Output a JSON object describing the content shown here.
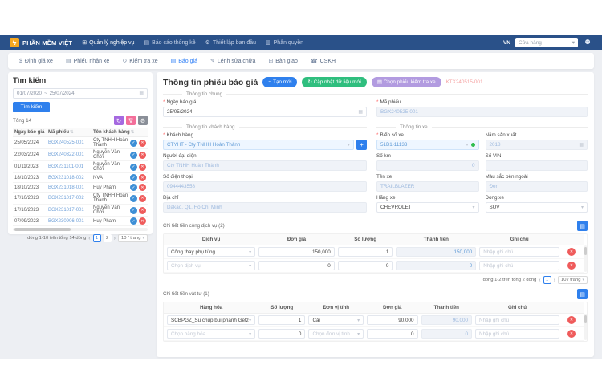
{
  "colors": {
    "navbar": "#2a5189",
    "primary": "#2f80ed",
    "green": "#2fbe7e",
    "purple": "#b29be0",
    "danger": "#ef5b5b",
    "violet": "#a569e0",
    "pink": "#f36f9a",
    "link": "#6fa0d8"
  },
  "icons": {
    "bolt": "ϟ",
    "grid": "⊞",
    "report": "▤",
    "setup": "⚙",
    "permission": "▥",
    "tab_pricing": "$",
    "tab_receive": "▤",
    "tab_inspect": "↻",
    "tab_quote": "▤",
    "tab_repair": "✎",
    "tab_handover": "⊟",
    "tab_cskh": "☎",
    "calendar": "▦",
    "refresh": "↻",
    "filter": "∇",
    "gear": "⚙",
    "sort": "⇅",
    "check": "✓",
    "del": "✕",
    "plus": "+",
    "chev": "▾",
    "prev": "‹",
    "next": "›",
    "table": "▤",
    "user": "☻"
  },
  "nav": {
    "brand": "PHẦN MỀM VIỆT",
    "items": [
      "Quản lý nghiệp vụ",
      "Báo cáo thống kê",
      "Thiết lập ban đầu",
      "Phân quyền"
    ],
    "lang": "VN",
    "store": "Cửa hàng"
  },
  "tabs": [
    {
      "label": "Định giá xe"
    },
    {
      "label": "Phiếu nhận xe"
    },
    {
      "label": "Kiểm tra xe"
    },
    {
      "label": "Báo giá"
    },
    {
      "label": "Lệnh sửa chữa"
    },
    {
      "label": "Bàn giao"
    },
    {
      "label": "CSKH"
    }
  ],
  "search": {
    "title": "Tìm kiếm",
    "date_from": "01/07/2020",
    "separator": "~",
    "date_to": "25/07/2024",
    "button": "Tìm kiếm",
    "total": "Tổng 14",
    "columns": [
      "Ngày báo giá",
      "Mã phiếu",
      "Tên khách hàng"
    ],
    "rows": [
      {
        "date": "25/05/2024",
        "code": "BGX240525-001",
        "name": "Cty TNHH Hoàn Thành"
      },
      {
        "date": "22/03/2024",
        "code": "BGX240322-001",
        "name": "Nguyễn Văn Chới"
      },
      {
        "date": "01/11/2023",
        "code": "BGX231101-001",
        "name": "Nguyễn Văn Chới"
      },
      {
        "date": "18/10/2023",
        "code": "BGX231018-002",
        "name": "NVA"
      },
      {
        "date": "18/10/2023",
        "code": "BGX231018-001",
        "name": "Huy Pham"
      },
      {
        "date": "17/10/2023",
        "code": "BGX231017-002",
        "name": "Cty TNHH Hoàn Thành"
      },
      {
        "date": "17/10/2023",
        "code": "BGX231017-001",
        "name": "Nguyễn Văn Chới"
      },
      {
        "date": "07/09/2023",
        "code": "BGX230906-001",
        "name": "Huy Pham"
      }
    ],
    "pagination": {
      "summary": "dòng 1-10 trên tổng 14 dòng",
      "page1": "1",
      "page2": "2",
      "size": "10 / trang"
    }
  },
  "detail": {
    "title": "Thông tin phiếu báo giá",
    "create": "Tạo mới",
    "update": "Cập nhật dữ liệu mới",
    "choose": "Chọn phiếu kiểm tra xe",
    "linked_code": "KTX240515-001",
    "sections": {
      "general": "Thông tin chung",
      "customer": "Thông tin khách hàng",
      "vehicle": "Thông tin xe"
    },
    "quote_date": {
      "label": "Ngày báo giá",
      "value": "25/05/2024"
    },
    "code": {
      "label": "Mã phiếu",
      "value": "BGX240525-001"
    },
    "customer": {
      "label": "Khách hàng",
      "value": "CTYHT - Cty TNHH Hoàn Thành"
    },
    "rep": {
      "label": "Người đại diện",
      "value": "Cty TNHH Hoàn Thành"
    },
    "phone": {
      "label": "Số điện thoại",
      "value": "0944443558"
    },
    "address": {
      "label": "Địa chỉ",
      "value": "Dakao, Q1, Hồ Chí Minh"
    },
    "plate": {
      "label": "Biển số xe",
      "value": "51B1-11133"
    },
    "year": {
      "label": "Năm sản xuất",
      "value": "2018"
    },
    "km": {
      "label": "Số km",
      "value": "0"
    },
    "vin": {
      "label": "Số VIN",
      "value": ""
    },
    "car_name": {
      "label": "Tên xe",
      "value": "TRAILBLAZER"
    },
    "color": {
      "label": "Màu sắc bên ngoài",
      "value": "Đen"
    },
    "brand": {
      "label": "Hãng xe",
      "value": "CHEVROLET"
    },
    "model": {
      "label": "Dòng xe",
      "value": "SUV"
    }
  },
  "services": {
    "title": "Chi tiết tiền công dịch vụ (2)",
    "columns": [
      "Dịch vụ",
      "Đơn giá",
      "Số lượng",
      "Thành tiền",
      "Ghi chú"
    ],
    "rows": [
      {
        "service": "Công thay phụ tùng",
        "price": "150,000",
        "qty": "1",
        "total": "150,000",
        "note": "Nhập ghi chú"
      },
      {
        "service": "Chọn dịch vụ",
        "price": "0",
        "qty": "0",
        "total": "0",
        "note": "Nhập ghi chú"
      }
    ],
    "pagination": {
      "summary": "dòng 1-2 trên tổng 2 dòng",
      "page1": "1",
      "size": "10 / trang"
    }
  },
  "parts": {
    "title": "Chi tiết tiền vật tư (1)",
    "columns": [
      "Hàng hóa",
      "Số lượng",
      "Đơn vị tính",
      "Đơn giá",
      "Thành tiền",
      "Ghi chú"
    ],
    "rows": [
      {
        "item": "SCBPGZ_Su chup bui phanh Getz",
        "qty": "1",
        "unit": "Cái",
        "price": "90,000",
        "total": "90,000",
        "note": "Nhập ghi chú"
      },
      {
        "item": "Chọn hàng hóa",
        "qty": "0",
        "unit": "Chọn đơn vị tính",
        "price": "0",
        "total": "0",
        "note": "Nhập ghi chú"
      }
    ]
  }
}
